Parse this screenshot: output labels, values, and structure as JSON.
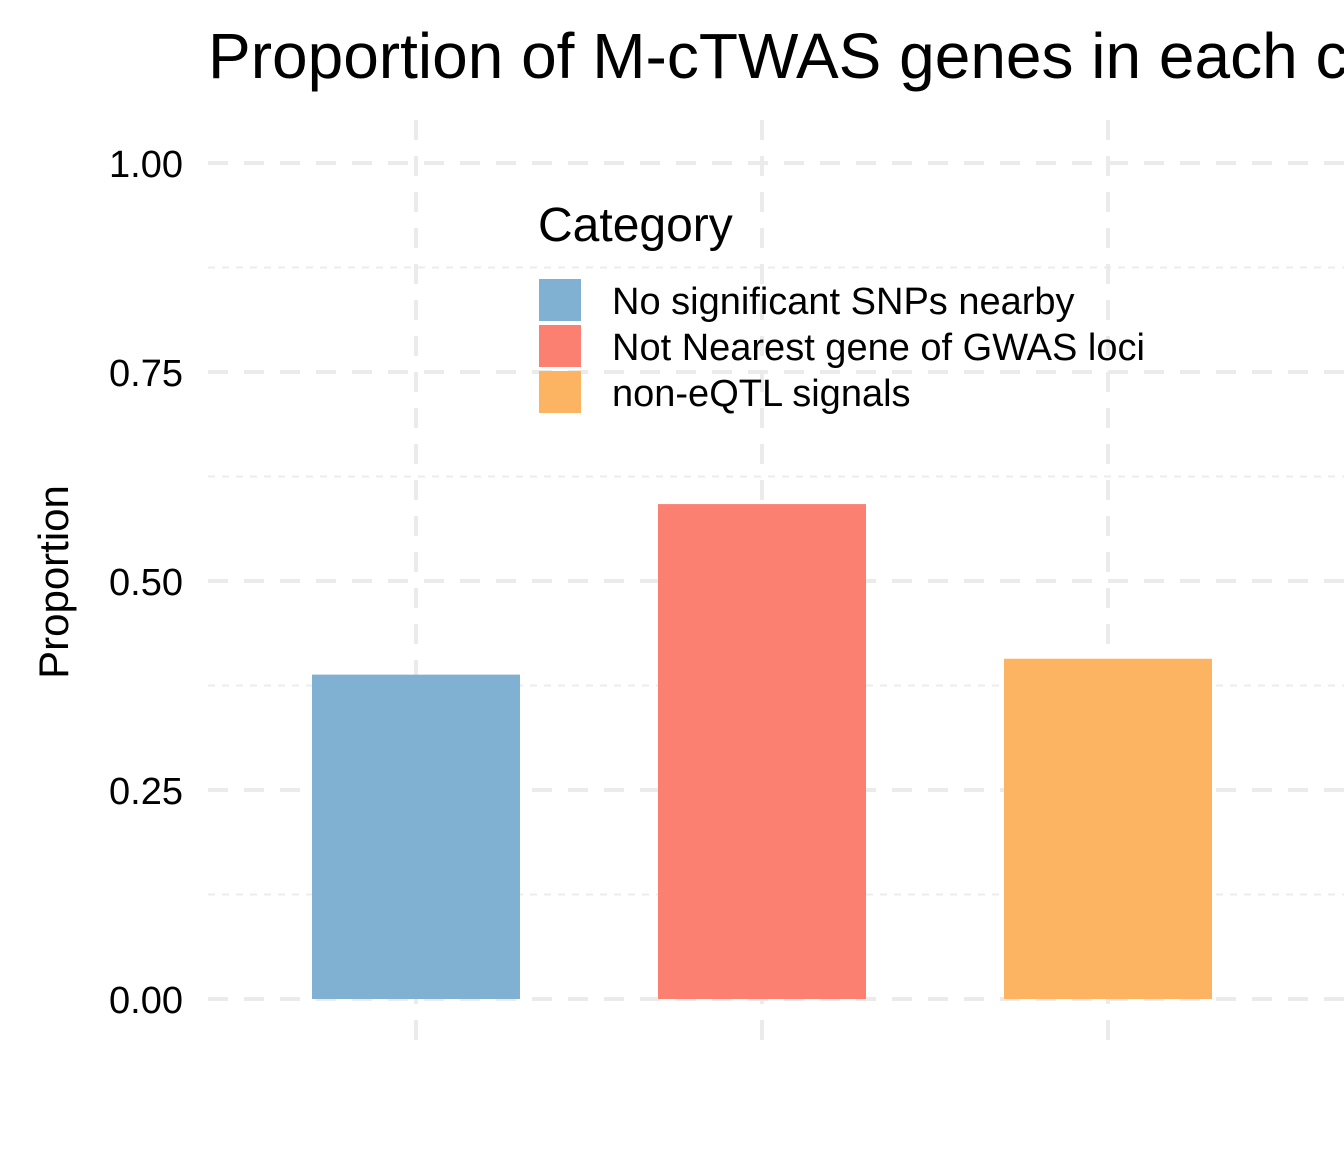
{
  "chart_data": {
    "type": "bar",
    "title": "Proportion of M-cTWAS genes in each category",
    "xlabel": "",
    "ylabel": "Proportion",
    "categories": [
      "No significant SNPs nearby",
      "Not Nearest gene of GWAS loci",
      "non-eQTL signals"
    ],
    "values": [
      0.388,
      0.592,
      0.407
    ],
    "colors": [
      "#80B1D3",
      "#FB8072",
      "#FDB462"
    ],
    "ylim": [
      0,
      1
    ],
    "yticks": [
      "0.00",
      "0.25",
      "0.50",
      "0.75",
      "1.00"
    ],
    "grid": true,
    "legend": {
      "title": "Category",
      "placement": "top-right",
      "entries": [
        "No significant SNPs nearby",
        "Not Nearest gene of GWAS loci",
        "non-eQTL signals"
      ]
    }
  }
}
